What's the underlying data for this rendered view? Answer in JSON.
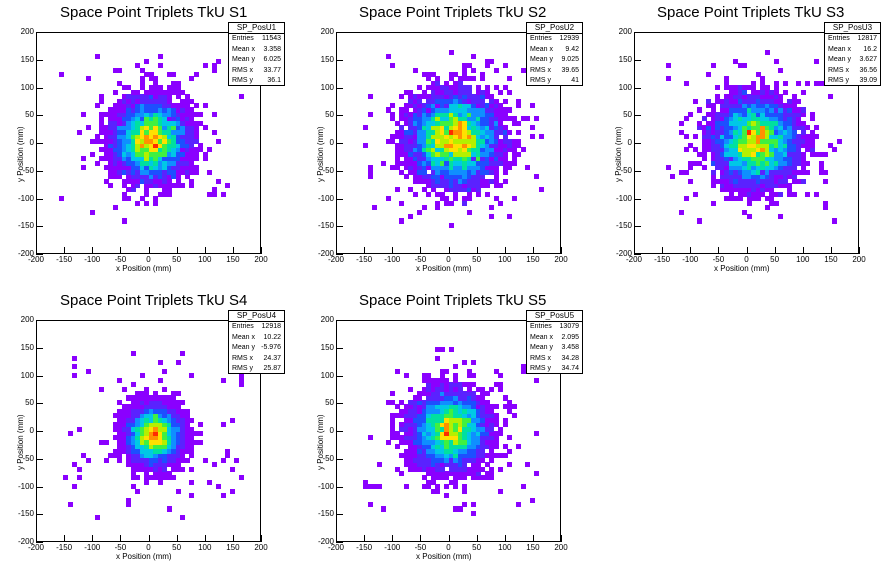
{
  "colors": {
    "scale": [
      "#8a00ff",
      "#5a22ff",
      "#1d4fff",
      "#0f8fff",
      "#00c8e6",
      "#00e0a0",
      "#40f040",
      "#b4f000",
      "#ffe000",
      "#ff9000",
      "#ff2a00"
    ]
  },
  "chart_data": [
    {
      "type": "heatmap",
      "title": "Space Point Triplets TkU S1",
      "name": "SP_PosU1",
      "xlabel": "x Position (mm)",
      "ylabel": "y Position (mm)",
      "xlim": [
        -200,
        200
      ],
      "ylim": [
        -200,
        200
      ],
      "x_ticks": [
        -200,
        -150,
        -100,
        -50,
        0,
        50,
        100,
        150,
        200
      ],
      "y_ticks": [
        -200,
        -150,
        -100,
        -50,
        0,
        50,
        100,
        150,
        200
      ],
      "stats": [
        [
          "Entries",
          "11543"
        ],
        [
          "Mean x",
          "3.358"
        ],
        [
          "Mean y",
          "6.025"
        ],
        [
          "RMS x",
          "33.77"
        ],
        [
          "RMS y",
          "36.1"
        ]
      ],
      "center": [
        3.4,
        6.0
      ],
      "spread": [
        33.8,
        36.1
      ],
      "entries": 11543,
      "seed": 11
    },
    {
      "type": "heatmap",
      "title": "Space Point Triplets TkU S2",
      "name": "SP_PosU2",
      "xlabel": "x Position (mm)",
      "ylabel": "y Position (mm)",
      "xlim": [
        -200,
        200
      ],
      "ylim": [
        -200,
        200
      ],
      "x_ticks": [
        -200,
        -150,
        -100,
        -50,
        0,
        50,
        100,
        150,
        200
      ],
      "y_ticks": [
        -200,
        -150,
        -100,
        -50,
        0,
        50,
        100,
        150,
        200
      ],
      "stats": [
        [
          "Entries",
          "12939"
        ],
        [
          "Mean x",
          "9.42"
        ],
        [
          "Mean y",
          "9.025"
        ],
        [
          "RMS x",
          "39.65"
        ],
        [
          "RMS y",
          "41"
        ]
      ],
      "center": [
        9.4,
        9.0
      ],
      "spread": [
        39.7,
        41
      ],
      "entries": 12939,
      "seed": 23
    },
    {
      "type": "heatmap",
      "title": "Space Point Triplets TkU S3",
      "name": "SP_PosU3",
      "xlabel": "x Position (mm)",
      "ylabel": "y Position (mm)",
      "xlim": [
        -200,
        200
      ],
      "ylim": [
        -200,
        200
      ],
      "x_ticks": [
        -200,
        -150,
        -100,
        -50,
        0,
        50,
        100,
        150,
        200
      ],
      "y_ticks": [
        -200,
        -150,
        -100,
        -50,
        0,
        50,
        100,
        150,
        200
      ],
      "stats": [
        [
          "Entries",
          "12817"
        ],
        [
          "Mean x",
          "16.2"
        ],
        [
          "Mean y",
          "3.627"
        ],
        [
          "RMS x",
          "36.56"
        ],
        [
          "RMS y",
          "39.09"
        ]
      ],
      "center": [
        16.2,
        3.6
      ],
      "spread": [
        36.6,
        39.1
      ],
      "entries": 12817,
      "seed": 37
    },
    {
      "type": "heatmap",
      "title": "Space Point Triplets TkU S4",
      "name": "SP_PosU4",
      "xlabel": "x Position (mm)",
      "ylabel": "y Position (mm)",
      "xlim": [
        -200,
        200
      ],
      "ylim": [
        -200,
        200
      ],
      "x_ticks": [
        -200,
        -150,
        -100,
        -50,
        0,
        50,
        100,
        150,
        200
      ],
      "y_ticks": [
        -200,
        -150,
        -100,
        -50,
        0,
        50,
        100,
        150,
        200
      ],
      "stats": [
        [
          "Entries",
          "12918"
        ],
        [
          "Mean x",
          "10.22"
        ],
        [
          "Mean y",
          "-5.976"
        ],
        [
          "RMS x",
          "24.37"
        ],
        [
          "RMS y",
          "25.87"
        ]
      ],
      "center": [
        10.2,
        -6.0
      ],
      "spread": [
        24.4,
        25.9
      ],
      "entries": 12918,
      "seed": 51
    },
    {
      "type": "heatmap",
      "title": "Space Point Triplets TkU S5",
      "name": "SP_PosU5",
      "xlabel": "x Position (mm)",
      "ylabel": "y Position (mm)",
      "xlim": [
        -200,
        200
      ],
      "ylim": [
        -200,
        200
      ],
      "x_ticks": [
        -200,
        -150,
        -100,
        -50,
        0,
        50,
        100,
        150,
        200
      ],
      "y_ticks": [
        -200,
        -150,
        -100,
        -50,
        0,
        50,
        100,
        150,
        200
      ],
      "stats": [
        [
          "Entries",
          "13079"
        ],
        [
          "Mean x",
          "2.095"
        ],
        [
          "Mean y",
          "3.458"
        ],
        [
          "RMS x",
          "34.28"
        ],
        [
          "RMS y",
          "34.74"
        ]
      ],
      "center": [
        2.1,
        3.5
      ],
      "spread": [
        34.3,
        34.7
      ],
      "entries": 13079,
      "seed": 67
    }
  ]
}
